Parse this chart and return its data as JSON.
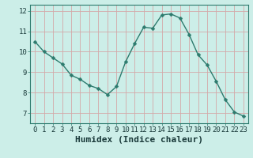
{
  "x": [
    0,
    1,
    2,
    3,
    4,
    5,
    6,
    7,
    8,
    9,
    10,
    11,
    12,
    13,
    14,
    15,
    16,
    17,
    18,
    19,
    20,
    21,
    22,
    23
  ],
  "y": [
    10.5,
    10.0,
    9.7,
    9.4,
    8.85,
    8.65,
    8.35,
    8.2,
    7.9,
    8.3,
    9.5,
    10.4,
    11.2,
    11.15,
    11.8,
    11.85,
    11.65,
    10.85,
    9.85,
    9.35,
    8.55,
    7.65,
    7.05,
    6.85
  ],
  "line_color": "#2d7b6e",
  "marker": "D",
  "marker_size": 2.5,
  "background_color": "#cceee8",
  "grid_color": "#d4a8a8",
  "xlabel": "Humidex (Indice chaleur)",
  "xlabel_fontsize": 8,
  "xlim": [
    -0.5,
    23.5
  ],
  "ylim": [
    6.5,
    12.3
  ],
  "yticks": [
    7,
    8,
    9,
    10,
    11,
    12
  ],
  "xtick_labels": [
    "0",
    "1",
    "2",
    "3",
    "4",
    "5",
    "6",
    "7",
    "8",
    "9",
    "10",
    "11",
    "12",
    "13",
    "14",
    "15",
    "16",
    "17",
    "18",
    "19",
    "20",
    "21",
    "22",
    "23"
  ],
  "tick_fontsize": 6.5,
  "xlabel_fontsize_bold": 8,
  "line_width": 1.0
}
